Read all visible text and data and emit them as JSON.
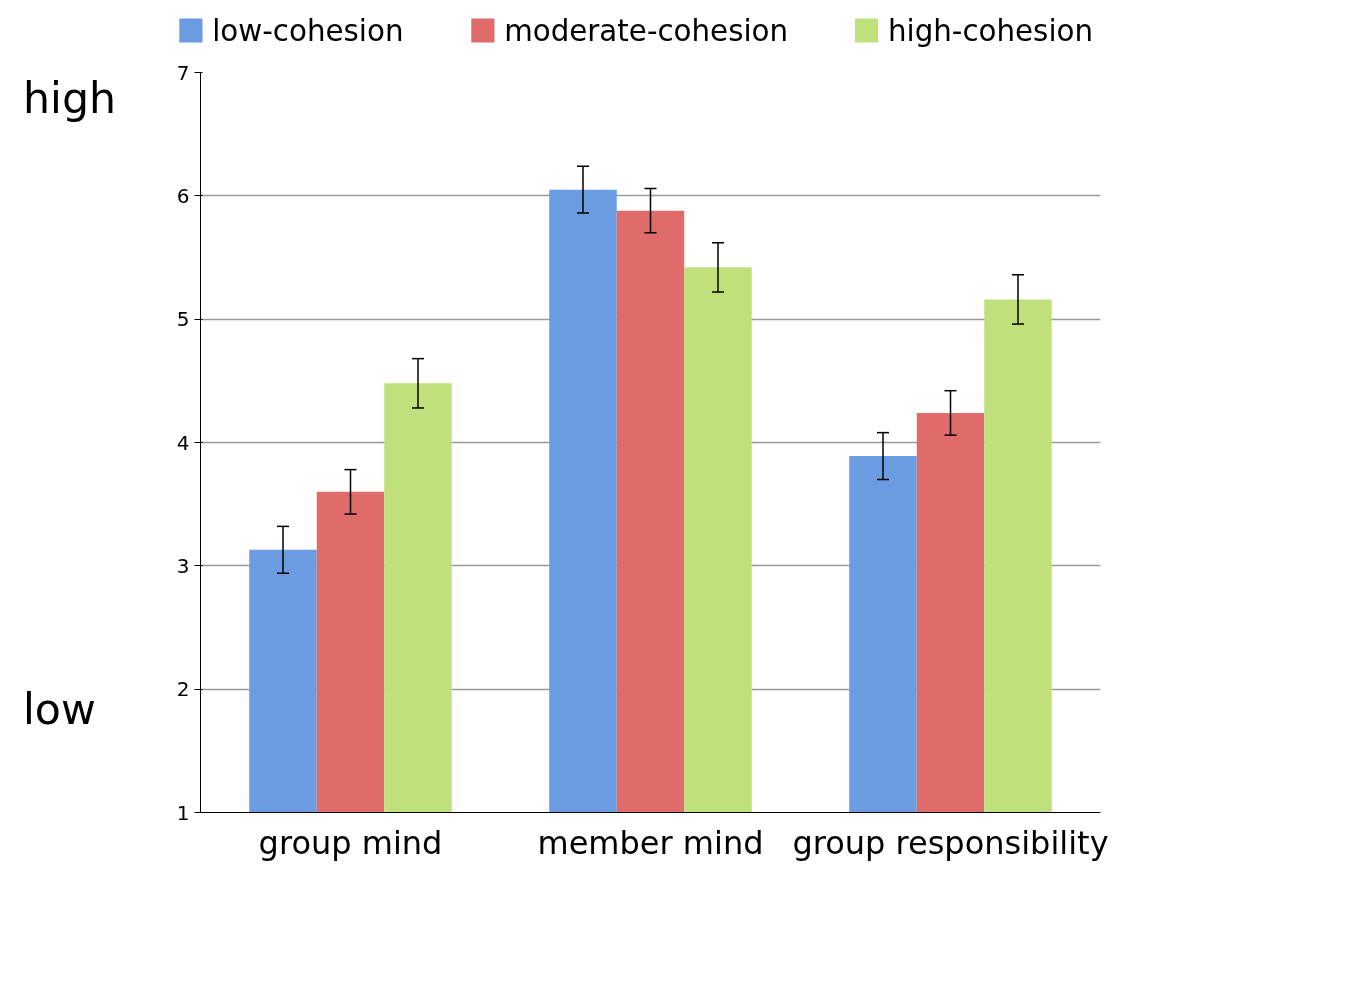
{
  "chart_data": {
    "type": "bar",
    "categories": [
      "group mind",
      "member mind",
      "group responsibility"
    ],
    "series": [
      {
        "name": "low-cohesion",
        "color": "#6b9be0",
        "values": [
          3.13,
          6.05,
          3.89
        ],
        "errors": [
          0.19,
          0.19,
          0.19
        ]
      },
      {
        "name": "moderate-cohesion",
        "color": "#e06b6b",
        "values": [
          3.6,
          5.88,
          4.24
        ],
        "errors": [
          0.18,
          0.18,
          0.18
        ]
      },
      {
        "name": "high-cohesion",
        "color": "#bfe07a",
        "values": [
          4.48,
          5.42,
          5.16
        ],
        "errors": [
          0.2,
          0.2,
          0.2
        ]
      }
    ],
    "ylim": [
      1,
      7
    ],
    "yticks": [
      1,
      2,
      3,
      4,
      5,
      6,
      7
    ],
    "grid": "y",
    "legend": "top",
    "annotations": [
      "high",
      "low"
    ]
  }
}
